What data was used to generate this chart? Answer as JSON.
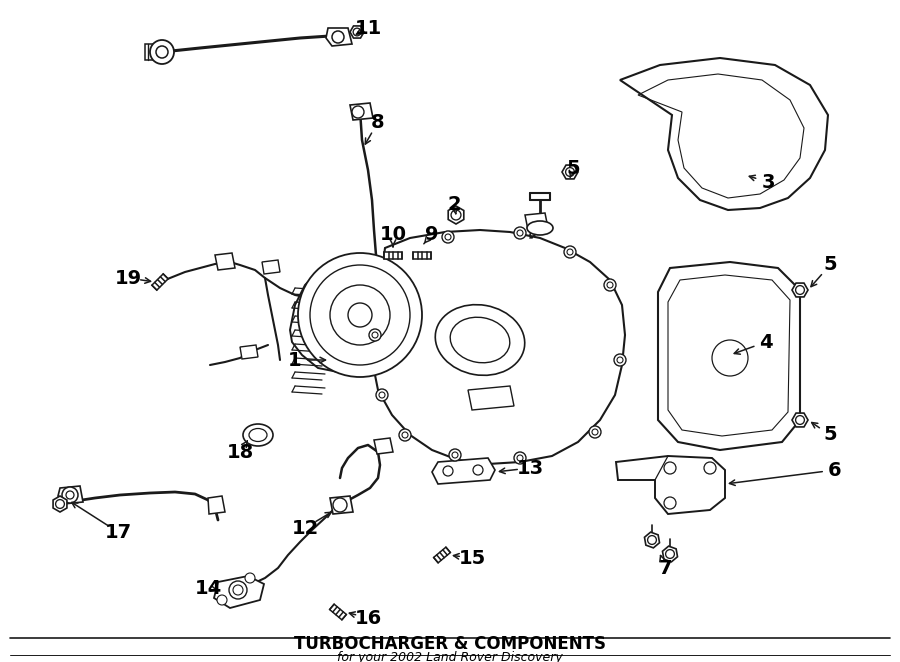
{
  "title": "TURBOCHARGER & COMPONENTS",
  "subtitle": "for your 2002 Land Rover Discovery",
  "bg_color": "#ffffff",
  "line_color": "#1a1a1a",
  "figsize": [
    9.0,
    6.62
  ],
  "dpi": 100,
  "title_fontsize": 12,
  "subtitle_fontsize": 9,
  "label_fontsize": 14
}
